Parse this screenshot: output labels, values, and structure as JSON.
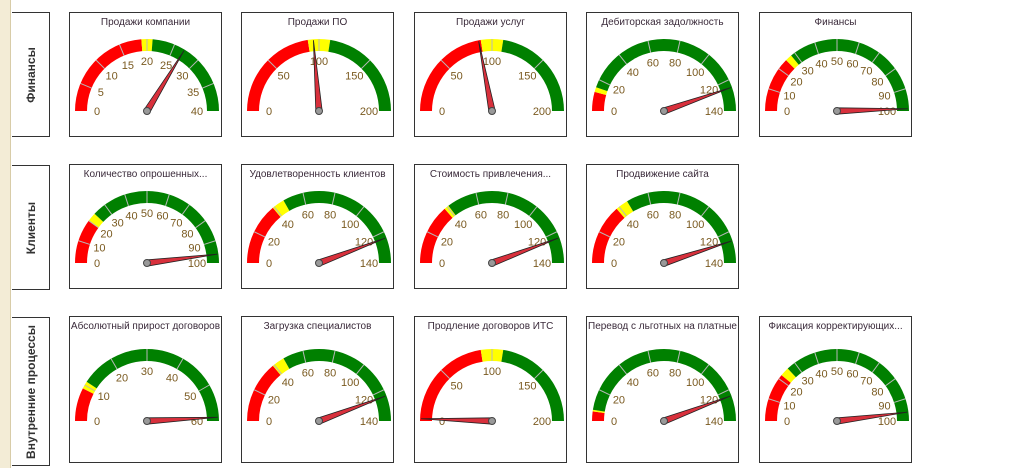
{
  "rows": [
    {
      "label": "Финансы",
      "gauges": [
        {
          "title": "Продажи компании",
          "min": 0,
          "max": 40,
          "ticks": [
            0,
            5,
            10,
            15,
            20,
            25,
            30,
            35,
            40
          ],
          "red_to": 19,
          "yellow_to": 21,
          "value": 27
        },
        {
          "title": "Продажи ПО",
          "min": 0,
          "max": 200,
          "ticks": [
            0,
            50,
            100,
            150,
            200
          ],
          "red_to": 90,
          "yellow_to": 110,
          "value": 95
        },
        {
          "title": "Продажи услуг",
          "min": 0,
          "max": 200,
          "ticks": [
            0,
            50,
            100,
            150,
            200
          ],
          "red_to": 90,
          "yellow_to": 110,
          "value": 88
        },
        {
          "title": "Дебиторская задолжность",
          "min": 0,
          "max": 140,
          "ticks": [
            0,
            20,
            40,
            60,
            80,
            100,
            120,
            140
          ],
          "red_to": 12,
          "yellow_to": 15,
          "value": 125
        },
        {
          "title": "Финансы",
          "min": 0,
          "max": 100,
          "ticks": [
            0,
            10,
            20,
            30,
            40,
            50,
            60,
            70,
            80,
            90,
            100
          ],
          "red_to": 25,
          "yellow_to": 28,
          "value": 99
        }
      ]
    },
    {
      "label": "Клиенты",
      "gauges": [
        {
          "title": "Количество  опрошенных...",
          "min": 0,
          "max": 100,
          "ticks": [
            0,
            10,
            20,
            30,
            40,
            50,
            60,
            70,
            80,
            90,
            100
          ],
          "red_to": 20,
          "yellow_to": 24,
          "value": 96
        },
        {
          "title": "Удовлетворенность клиентов",
          "min": 0,
          "max": 140,
          "ticks": [
            0,
            20,
            40,
            60,
            80,
            100,
            120,
            140
          ],
          "red_to": 39,
          "yellow_to": 47,
          "value": 124
        },
        {
          "title": "Стоимость  привлечения...",
          "min": 0,
          "max": 140,
          "ticks": [
            0,
            20,
            40,
            60,
            80,
            100,
            120,
            140
          ],
          "red_to": 38,
          "yellow_to": 41,
          "value": 124
        },
        {
          "title": "Продвижение сайта",
          "min": 0,
          "max": 140,
          "ticks": [
            0,
            20,
            40,
            60,
            80,
            100,
            120,
            140
          ],
          "red_to": 38,
          "yellow_to": 46,
          "value": 126
        }
      ]
    },
    {
      "label": "Внутренние процессы",
      "gauges": [
        {
          "title": "Абсолютный прирост договоров",
          "min": 0,
          "max": 60,
          "ticks": [
            0,
            10,
            20,
            30,
            40,
            50,
            60
          ],
          "red_to": 9,
          "yellow_to": 11,
          "value": 59
        },
        {
          "title": "Загрузка специалистов",
          "min": 0,
          "max": 140,
          "ticks": [
            0,
            20,
            40,
            60,
            80,
            100,
            120,
            140
          ],
          "red_to": 39,
          "yellow_to": 47,
          "value": 124
        },
        {
          "title": "Продление договоров ИТС",
          "min": 0,
          "max": 200,
          "ticks": [
            0,
            50,
            100,
            150,
            200
          ],
          "red_to": 90,
          "yellow_to": 110,
          "value": 2
        },
        {
          "title": "Перевод с льготных на платные",
          "min": 0,
          "max": 140,
          "ticks": [
            0,
            20,
            40,
            60,
            80,
            100,
            120,
            140
          ],
          "red_to": 6,
          "yellow_to": 7,
          "value": 124
        },
        {
          "title": "Фиксация  корректирующих...",
          "min": 0,
          "max": 100,
          "ticks": [
            0,
            10,
            20,
            30,
            40,
            50,
            60,
            70,
            80,
            90,
            100
          ],
          "red_to": 22,
          "yellow_to": 26,
          "value": 96
        }
      ]
    }
  ],
  "colors": {
    "red": "#ff0000",
    "yellow": "#ffff00",
    "green": "#008000",
    "needle": "#d8303c",
    "tick_label": "#7a5a20"
  }
}
